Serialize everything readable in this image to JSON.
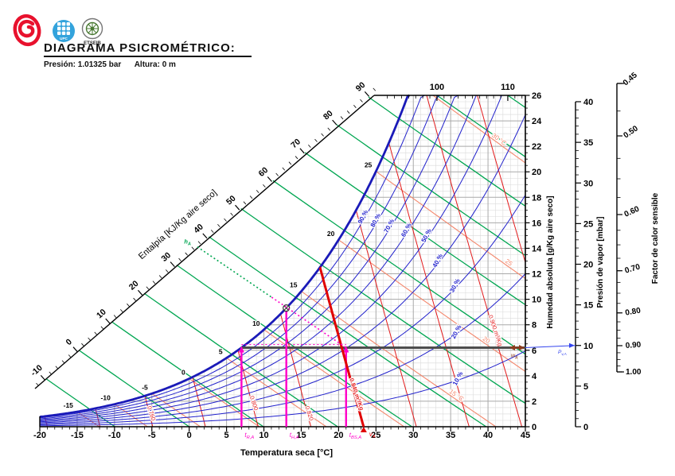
{
  "header": {
    "title": "DIAGRAMA PSICROMÉTRICO:",
    "pressure_label": "Presión: 1.01325 bar",
    "altitude_label": "Altura: 0 m",
    "logos": {
      "upc_caption": "UPC",
      "etseib_caption": "ETSEIB"
    }
  },
  "chart_data": {
    "type": "psychrometric-chart",
    "pressure_bar": 1.01325,
    "axes": {
      "temperature": {
        "label": "Temperatura seca [°C]",
        "min": -20,
        "max": 45,
        "ticks": [
          -20,
          -15,
          -10,
          -5,
          0,
          5,
          10,
          15,
          20,
          25,
          30,
          35,
          40,
          45
        ],
        "minor_step": 1
      },
      "humidity": {
        "label": "Humedad absoluta [g/Kg aire seco]",
        "min": 0,
        "max": 26,
        "ticks": [
          0,
          2,
          4,
          6,
          8,
          10,
          12,
          14,
          16,
          18,
          20,
          22,
          24,
          26
        ],
        "minor_step": 0.5
      },
      "enthalpy": {
        "label": "Entalpía [KJ/Kg aire seco]",
        "min": -10,
        "max": 110,
        "diagonal_labels": [
          -10,
          0,
          10,
          20,
          30,
          40,
          50,
          60,
          70,
          80,
          90
        ],
        "top_labels": [
          100,
          110
        ],
        "minor_step": 2
      },
      "vapor_pressure": {
        "label": "Presión de vapor [mbar]",
        "min": 0,
        "max": 40,
        "ticks": [
          0,
          5,
          10,
          15,
          20,
          25,
          30,
          35,
          40
        ],
        "minor_step": 1
      },
      "sensible_heat_factor": {
        "label": "Factor de calor sensible",
        "ticks": [
          0.45,
          0.5,
          0.6,
          0.7,
          0.8,
          0.9,
          1.0
        ],
        "tick_labels": [
          "0.45",
          "0.50",
          "0.60",
          "0.70",
          "0.80",
          "0.90",
          "1.00"
        ],
        "minor_step": 0.025
      }
    },
    "curves": {
      "relative_humidity": {
        "values": [
          10,
          20,
          30,
          40,
          50,
          60,
          70,
          80,
          90,
          100
        ],
        "labels": [
          {
            "rh": 90,
            "text": "90 %",
            "at_t": 23.5
          },
          {
            "rh": 80,
            "text": "80 %",
            "at_t": 25.2
          },
          {
            "rh": 70,
            "text": "70 %",
            "at_t": 27.0
          },
          {
            "rh": 60,
            "text": "60 %",
            "at_t": 29.3
          },
          {
            "rh": 50,
            "text": "50 %",
            "at_t": 32.0
          },
          {
            "rh": 40,
            "text": "40 %",
            "at_t": 33.5
          },
          {
            "rh": 30,
            "text": "30 %",
            "at_t": 35.8
          },
          {
            "rh": 20,
            "text": "20 %",
            "at_t": 36.0
          },
          {
            "rh": 10,
            "text": "10 %",
            "at_t": 36.2
          }
        ]
      },
      "saturation_temperature_labels": [
        -15,
        -10,
        -5,
        0,
        5,
        10,
        15,
        20,
        25
      ],
      "wet_bulb": {
        "values": [
          -15,
          -10,
          -5,
          0,
          5,
          10,
          15,
          20,
          25,
          30
        ],
        "labels": [
          {
            "tw": 15,
            "text": "15 °C",
            "at_t": 35.5
          },
          {
            "tw": 20,
            "text": "20",
            "at_t": 39.5
          },
          {
            "tw": 25,
            "text": "25",
            "at_t": 42.5
          },
          {
            "tw": 30,
            "text": "30 °C",
            "at_t": 41.2
          }
        ]
      },
      "specific_volume": {
        "values": [
          0.72,
          0.74,
          0.76,
          0.78,
          0.8,
          0.82,
          0.84,
          0.86,
          0.88,
          0.9,
          0.92
        ],
        "labels": [
          {
            "v": 0.76,
            "text": "0.760",
            "at_w": 1.0
          },
          {
            "v": 0.8,
            "text": "0.800",
            "at_w": 1.8
          },
          {
            "v": 0.82,
            "text": "0.820",
            "at_w": 1.0
          },
          {
            "v": 0.9,
            "text": "0.900 m³/Kg",
            "at_w": 7.5
          }
        ]
      },
      "enthalpy_lines": [
        -10,
        0,
        10,
        20,
        30,
        40,
        50,
        60,
        70,
        80,
        90,
        100,
        110
      ]
    },
    "example_point": {
      "dry_bulb_c": 21,
      "wet_bulb_c": 13,
      "dew_point_c": 7,
      "humidity_g_kg": 6.2,
      "vapor_pressure_mbar": 10,
      "enthalpy_kj_kg": 37,
      "specific_volume_m3_kg": 0.84,
      "volume_line_label": "0.840 m³/Kg",
      "labels": {
        "dry_bulb": {
          "sym": "t",
          "sub": "BS,A"
        },
        "wet_bulb": {
          "sym": "t",
          "sub": "H,A"
        },
        "dew_point": {
          "sym": "t",
          "sub": "R,A"
        },
        "enthalpy": {
          "sym": "h",
          "sub": "A"
        },
        "humidity": {
          "sym": "w",
          "sub": "A"
        },
        "vapor": {
          "sym": "P",
          "sub": "v,A"
        },
        "volume": {
          "sym": "v",
          "sub": "A"
        }
      }
    },
    "colors": {
      "enthalpy_green": "#00a651",
      "rh_blue": "#2222cc",
      "saturation_blue": "#1a1ab8",
      "wet_bulb_orange": "#f4876c",
      "volume_red": "#e31b1c",
      "marker_magenta": "#ff00c8",
      "dark_line": "#4d4d4d",
      "brown_marker": "#8c3b1b",
      "grid_minor": "#d9d9d9",
      "grid_major": "#a9a9a9",
      "axis_black": "#000000"
    }
  }
}
